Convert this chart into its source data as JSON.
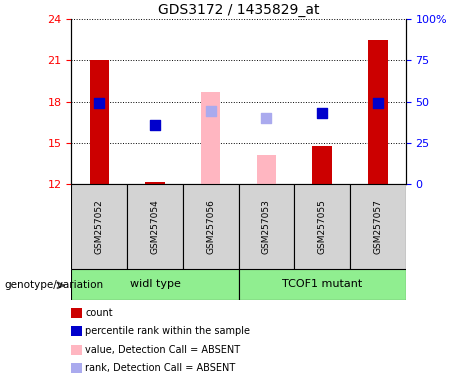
{
  "title": "GDS3172 / 1435829_at",
  "samples": [
    "GSM257052",
    "GSM257054",
    "GSM257056",
    "GSM257053",
    "GSM257055",
    "GSM257057"
  ],
  "red_bar_bottom": 12,
  "bar_data": {
    "GSM257052": {
      "value": 21.0,
      "absent": false
    },
    "GSM257054": {
      "value": 12.2,
      "absent": false
    },
    "GSM257056": {
      "value": 18.7,
      "absent": true
    },
    "GSM257053": {
      "value": 14.1,
      "absent": true
    },
    "GSM257055": {
      "value": 14.8,
      "absent": false
    },
    "GSM257057": {
      "value": 22.5,
      "absent": false
    }
  },
  "rank_data": {
    "GSM257052": {
      "value": 17.9,
      "absent": false
    },
    "GSM257054": {
      "value": 16.3,
      "absent": false
    },
    "GSM257056": {
      "value": 17.3,
      "absent": true
    },
    "GSM257053": {
      "value": 16.8,
      "absent": true
    },
    "GSM257055": {
      "value": 17.2,
      "absent": false
    },
    "GSM257057": {
      "value": 17.9,
      "absent": false
    }
  },
  "ylim_left": [
    12,
    24
  ],
  "ylim_right": [
    0,
    100
  ],
  "yticks_left": [
    12,
    15,
    18,
    21,
    24
  ],
  "yticks_right": [
    0,
    25,
    50,
    75,
    100
  ],
  "ytick_labels_right": [
    "0",
    "25",
    "50",
    "75",
    "100%"
  ],
  "bar_color_normal": "#CC0000",
  "bar_color_absent": "#FFB6C1",
  "rank_color_normal": "#0000CC",
  "rank_color_absent": "#AAAAEE",
  "bar_width": 0.35,
  "rank_marker_size": 55,
  "sample_area_color": "#D3D3D3",
  "group_color": "#90EE90",
  "legend_items": [
    {
      "label": "count",
      "color": "#CC0000"
    },
    {
      "label": "percentile rank within the sample",
      "color": "#0000CC"
    },
    {
      "label": "value, Detection Call = ABSENT",
      "color": "#FFB6C1"
    },
    {
      "label": "rank, Detection Call = ABSENT",
      "color": "#AAAAEE"
    }
  ],
  "genotype_label": "genotype/variation",
  "group1_name": "widl type",
  "group2_name": "TCOF1 mutant"
}
